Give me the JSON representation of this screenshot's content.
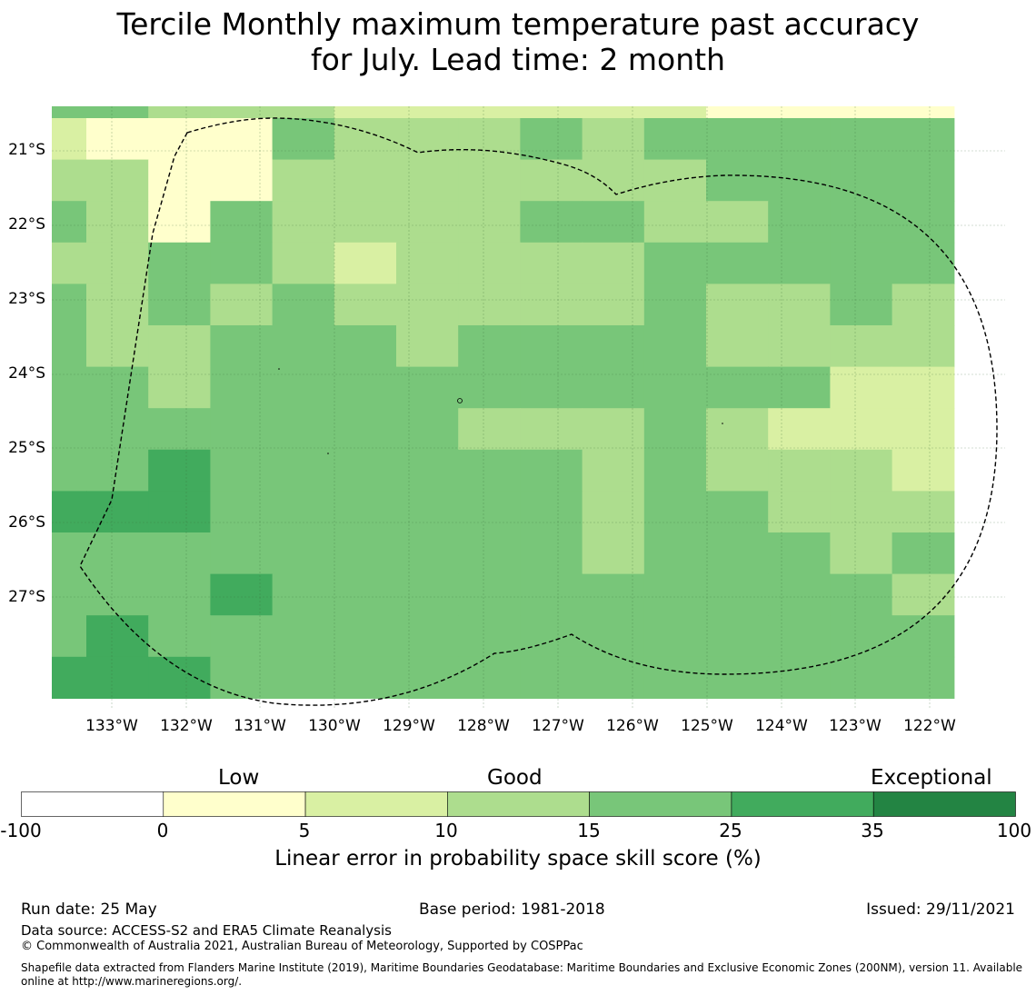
{
  "title": {
    "line1": "Tercile Monthly maximum temperature past accuracy",
    "line2": "for July. Lead time: 2 month"
  },
  "map": {
    "lat_labels": [
      "21°S",
      "22°S",
      "23°S",
      "24°S",
      "25°S",
      "26°S",
      "27°S"
    ],
    "lon_labels": [
      "133°W",
      "132°W",
      "131°W",
      "130°W",
      "129°W",
      "128°W",
      "127°W",
      "126°W",
      "125°W",
      "124°W",
      "123°W",
      "122°W"
    ],
    "grid": [
      [
        "b4",
        "b4",
        "b3",
        "b3",
        "b3",
        "b2",
        "b2",
        "b2",
        "b2",
        "b2",
        "b2",
        "b1",
        "b1",
        "b1",
        "b1"
      ],
      [
        "b2",
        "b1",
        "b1",
        "b1",
        "b4",
        "b3",
        "b3",
        "b3",
        "b4",
        "b3",
        "b4",
        "b4",
        "b4",
        "b4",
        "b4"
      ],
      [
        "b3",
        "b3",
        "b1",
        "b1",
        "b3",
        "b3",
        "b3",
        "b3",
        "b3",
        "b3",
        "b3",
        "b4",
        "b4",
        "b4",
        "b4"
      ],
      [
        "b4",
        "b3",
        "b1",
        "b4",
        "b3",
        "b3",
        "b3",
        "b3",
        "b4",
        "b4",
        "b3",
        "b3",
        "b4",
        "b4",
        "b4"
      ],
      [
        "b3",
        "b3",
        "b4",
        "b4",
        "b3",
        "b2",
        "b3",
        "b3",
        "b3",
        "b3",
        "b4",
        "b4",
        "b4",
        "b4",
        "b4"
      ],
      [
        "b4",
        "b3",
        "b4",
        "b3",
        "b4",
        "b3",
        "b3",
        "b3",
        "b3",
        "b3",
        "b4",
        "b3",
        "b3",
        "b4",
        "b3"
      ],
      [
        "b4",
        "b3",
        "b3",
        "b4",
        "b4",
        "b4",
        "b3",
        "b4",
        "b4",
        "b4",
        "b4",
        "b3",
        "b3",
        "b3",
        "b3"
      ],
      [
        "b4",
        "b4",
        "b3",
        "b4",
        "b4",
        "b4",
        "b4",
        "b4",
        "b4",
        "b4",
        "b4",
        "b4",
        "b4",
        "b2",
        "b2"
      ],
      [
        "b4",
        "b4",
        "b4",
        "b4",
        "b4",
        "b4",
        "b4",
        "b3",
        "b3",
        "b3",
        "b4",
        "b3",
        "b2",
        "b2",
        "b2"
      ],
      [
        "b4",
        "b4",
        "b5",
        "b4",
        "b4",
        "b4",
        "b4",
        "b4",
        "b4",
        "b3",
        "b4",
        "b3",
        "b3",
        "b3",
        "b2"
      ],
      [
        "b5",
        "b5",
        "b5",
        "b4",
        "b4",
        "b4",
        "b4",
        "b4",
        "b4",
        "b3",
        "b4",
        "b4",
        "b3",
        "b3",
        "b3"
      ],
      [
        "b4",
        "b4",
        "b4",
        "b4",
        "b4",
        "b4",
        "b4",
        "b4",
        "b4",
        "b3",
        "b4",
        "b4",
        "b4",
        "b3",
        "b4"
      ],
      [
        "b4",
        "b4",
        "b4",
        "b5",
        "b4",
        "b4",
        "b4",
        "b4",
        "b4",
        "b4",
        "b4",
        "b4",
        "b4",
        "b4",
        "b3"
      ],
      [
        "b4",
        "b5",
        "b4",
        "b4",
        "b4",
        "b4",
        "b4",
        "b4",
        "b4",
        "b4",
        "b4",
        "b4",
        "b4",
        "b4",
        "b4"
      ],
      [
        "b5",
        "b5",
        "b5",
        "b4",
        "b4",
        "b4",
        "b4",
        "b4",
        "b4",
        "b4",
        "b4",
        "b4",
        "b4",
        "b4",
        "b4"
      ]
    ],
    "colors": {
      "b1": "#ffffcc",
      "b2": "#d9f0a3",
      "b3": "#addd8e",
      "b4": "#78c679",
      "b5": "#41ab5d",
      "b6": "#238443"
    },
    "boundary_color": "#000000"
  },
  "colorbar": {
    "categories": {
      "low": "Low",
      "good": "Good",
      "exceptional": "Exceptional"
    },
    "ticks": [
      "-100",
      "0",
      "5",
      "10",
      "15",
      "25",
      "35",
      "100"
    ],
    "colors": [
      "#ffffff",
      "#ffffcc",
      "#d9f0a3",
      "#addd8e",
      "#78c679",
      "#41ab5d",
      "#238443"
    ],
    "label": "Linear error in probability space skill score (%)"
  },
  "footer": {
    "run_date": "Run date: 25 May",
    "base_period": "Base period: 1981-2018",
    "issued": "Issued: 29/11/2021",
    "data_source": "Data source: ACCESS-S2 and ERA5 Climate Reanalysis",
    "copyright": "© Commonwealth of Australia 2021, Australian Bureau of Meteorology, Supported by COSPPac",
    "shapefile": "Shapefile data extracted from Flanders Marine Institute (2019), Maritime Boundaries Geodatabase: Maritime Boundaries and Exclusive Economic Zones (200NM), version 11. Available online at http://www.marineregions.org/."
  }
}
